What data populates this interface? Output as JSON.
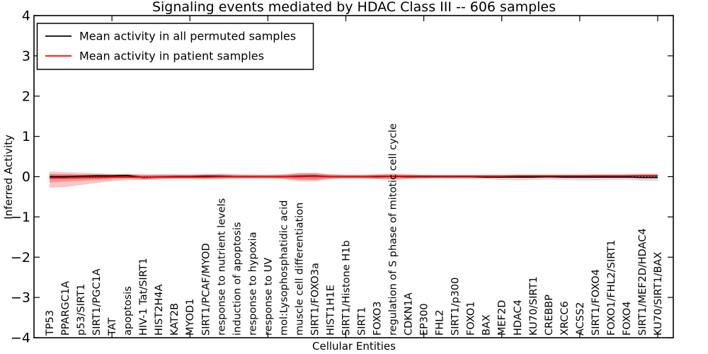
{
  "chart_data": {
    "type": "line",
    "title": "Signaling events mediated by HDAC Class III -- 606 samples",
    "xlabel": "Cellular Entities",
    "ylabel": "Inferred Activity",
    "ylim": [
      -4,
      4
    ],
    "ytick_labels": [
      "4",
      "3",
      "2",
      "1",
      "0",
      "−1",
      "−2",
      "−3",
      "−4"
    ],
    "ytick_values": [
      4,
      3,
      2,
      1,
      0,
      -1,
      -2,
      -3,
      -4
    ],
    "xtick_positions": [
      5,
      10,
      15,
      20,
      25,
      30,
      35,
      40
    ],
    "grid": false,
    "legend_position": "upper left",
    "categories": [
      "TP53",
      "PPARGC1A",
      "p53/SIRT1",
      "SIRT1/PGC1A",
      "TAT",
      "apoptosis",
      "HIV-1 Tat/SIRT1",
      "HIST2H4A",
      "KAT2B",
      "MYOD1",
      "SIRT1/PCAF/MYOD",
      "response to nutrient levels",
      "induction of apoptosis",
      "response to hypoxia",
      "response to UV",
      "mol:Lysophosphatidic acid",
      "muscle cell differentiation",
      "SIRT1/FOXO3a",
      "HIST1H1E",
      "SIRT1/Histone H1b",
      "SIRT1",
      "FOXO3",
      "regulation of S phase of mitotic cell cycle",
      "CDKN1A",
      "EP300",
      "FHL2",
      "SIRT1/p300",
      "FOXO1",
      "BAX",
      "MEF2D",
      "HDAC4",
      "KU70/SIRT1",
      "CREBBP",
      "XRCC6",
      "ACSS2",
      "SIRT1/FOXO4",
      "FOXO1/FHL2/SIRT1",
      "FOXO4",
      "SIRT1/MEF2D/HDAC4",
      "KU70/SIRT1/BAX"
    ],
    "series": [
      {
        "name": "Mean activity in all permuted samples",
        "color": "#000000",
        "values": [
          0.0,
          0.0,
          0.01,
          0.02,
          0.02,
          0.03,
          -0.02,
          -0.01,
          0.0,
          0.0,
          0.01,
          0.01,
          0.0,
          0.0,
          0.0,
          0.0,
          0.01,
          0.02,
          0.0,
          0.0,
          0.0,
          0.0,
          0.01,
          0.0,
          0.0,
          0.0,
          0.0,
          0.0,
          -0.01,
          -0.01,
          -0.01,
          -0.01,
          0.0,
          -0.01,
          -0.01,
          -0.01,
          -0.01,
          -0.01,
          -0.02,
          -0.02
        ]
      },
      {
        "name": "Mean activity in patient samples",
        "color": "#ff0000",
        "values": [
          -0.03,
          -0.03,
          -0.02,
          -0.02,
          -0.01,
          -0.01,
          -0.01,
          -0.01,
          -0.01,
          -0.01,
          -0.01,
          0.0,
          0.0,
          0.0,
          0.0,
          0.0,
          0.0,
          0.01,
          0.0,
          0.0,
          0.0,
          0.01,
          0.01,
          0.01,
          0.01,
          0.01,
          0.01,
          0.01,
          0.01,
          0.01,
          0.02,
          0.02,
          0.02,
          0.02,
          0.02,
          0.02,
          0.02,
          0.02,
          0.03,
          0.03
        ]
      }
    ],
    "bands": [
      {
        "name": "permuted-std-band",
        "color": "#aaaaaa",
        "opacity": 0.45,
        "upper": [
          0.06,
          0.06,
          0.06,
          0.07,
          0.06,
          0.08,
          0.03,
          0.05,
          0.05,
          0.04,
          0.06,
          0.08,
          0.06,
          0.05,
          0.04,
          0.05,
          0.09,
          0.1,
          0.06,
          0.05,
          0.04,
          0.05,
          0.06,
          0.05,
          0.04,
          0.04,
          0.04,
          0.04,
          0.04,
          0.04,
          0.04,
          0.03,
          0.04,
          0.04,
          0.04,
          0.04,
          0.04,
          0.05,
          0.05,
          0.05
        ],
        "lower": [
          -0.07,
          -0.07,
          -0.06,
          -0.05,
          -0.04,
          -0.03,
          -0.08,
          -0.06,
          -0.05,
          -0.05,
          -0.05,
          -0.05,
          -0.05,
          -0.04,
          -0.04,
          -0.05,
          -0.07,
          -0.08,
          -0.05,
          -0.04,
          -0.05,
          -0.06,
          -0.06,
          -0.05,
          -0.05,
          -0.05,
          -0.06,
          -0.06,
          -0.06,
          -0.08,
          -0.09,
          -0.08,
          -0.07,
          -0.08,
          -0.09,
          -0.09,
          -0.08,
          -0.08,
          -0.1,
          -0.1
        ]
      },
      {
        "name": "patient-std-outer-band",
        "color": "#ee3333",
        "opacity": 0.28,
        "upper": [
          0.13,
          0.11,
          0.1,
          0.08,
          0.07,
          0.06,
          0.06,
          0.06,
          0.06,
          0.06,
          0.07,
          0.06,
          0.05,
          0.05,
          0.05,
          0.06,
          0.09,
          0.09,
          0.06,
          0.05,
          0.05,
          0.06,
          0.08,
          0.06,
          0.05,
          0.05,
          0.05,
          0.05,
          0.05,
          0.05,
          0.05,
          0.05,
          0.05,
          0.05,
          0.05,
          0.06,
          0.06,
          0.06,
          0.07,
          0.07
        ],
        "lower": [
          -0.28,
          -0.26,
          -0.21,
          -0.16,
          -0.11,
          -0.08,
          -0.08,
          -0.07,
          -0.06,
          -0.06,
          -0.07,
          -0.06,
          -0.05,
          -0.05,
          -0.05,
          -0.06,
          -0.12,
          -0.12,
          -0.06,
          -0.05,
          -0.05,
          -0.06,
          -0.08,
          -0.06,
          -0.05,
          -0.04,
          -0.04,
          -0.04,
          -0.04,
          -0.03,
          -0.03,
          -0.03,
          -0.03,
          -0.03,
          -0.03,
          -0.03,
          -0.02,
          -0.02,
          -0.02,
          -0.02
        ]
      },
      {
        "name": "patient-std-inner-band",
        "color": "#ee2222",
        "opacity": 0.3,
        "upper": [
          0.07,
          0.06,
          0.05,
          0.05,
          0.04,
          0.04,
          0.04,
          0.04,
          0.04,
          0.04,
          0.04,
          0.04,
          0.03,
          0.03,
          0.03,
          0.04,
          0.06,
          0.06,
          0.04,
          0.03,
          0.03,
          0.04,
          0.05,
          0.04,
          0.04,
          0.03,
          0.03,
          0.03,
          0.03,
          0.03,
          0.03,
          0.03,
          0.03,
          0.03,
          0.03,
          0.04,
          0.04,
          0.04,
          0.05,
          0.05
        ],
        "lower": [
          -0.14,
          -0.12,
          -0.1,
          -0.08,
          -0.06,
          -0.05,
          -0.05,
          -0.04,
          -0.04,
          -0.04,
          -0.04,
          -0.04,
          -0.03,
          -0.03,
          -0.03,
          -0.04,
          -0.07,
          -0.07,
          -0.04,
          -0.03,
          -0.03,
          -0.04,
          -0.05,
          -0.04,
          -0.03,
          -0.02,
          -0.02,
          -0.02,
          -0.02,
          -0.01,
          -0.01,
          -0.01,
          -0.01,
          -0.01,
          -0.01,
          -0.01,
          -0.01,
          0.0,
          0.0,
          0.0
        ]
      }
    ],
    "zero_line": {
      "y": 0,
      "style": "dotted",
      "color": "#000000"
    }
  }
}
